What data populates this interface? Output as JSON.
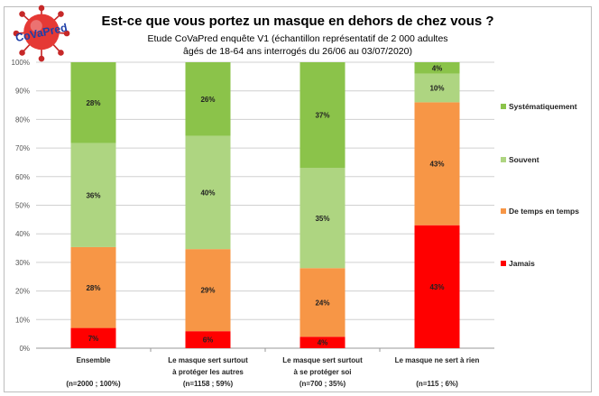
{
  "logo_text": "CoVaPred",
  "chart_data": {
    "type": "bar",
    "stacked": true,
    "title": "Est-ce que vous portez un masque en dehors de chez vous ?",
    "subtitle": [
      "Etude CoVaPred enquête V1 (échantillon représentatif de 2 000 adultes",
      "âgés de 18-64 ans interrogés du 26/06 au 03/07/2020)"
    ],
    "categories": [
      {
        "lines": [
          "Ensemble",
          "",
          "(n=2000 ; 100%)"
        ]
      },
      {
        "lines": [
          "Le masque sert surtout",
          "à protéger les autres",
          "(n=1158 ; 59%)"
        ]
      },
      {
        "lines": [
          "Le masque sert surtout",
          "à se protéger soi",
          "(n=700 ; 35%)"
        ]
      },
      {
        "lines": [
          "Le masque ne sert à rien",
          "",
          "(n=115 ; 6%)"
        ]
      }
    ],
    "series": [
      {
        "name": "Jamais",
        "color": "#ff0000",
        "values": [
          7,
          6,
          4,
          43
        ]
      },
      {
        "name": "De temps en temps",
        "color": "#f79646",
        "values": [
          28,
          29,
          24,
          43
        ]
      },
      {
        "name": "Souvent",
        "color": "#aed581",
        "values": [
          36,
          40,
          35,
          10
        ]
      },
      {
        "name": "Systématiquement",
        "color": "#8bc34a",
        "values": [
          28,
          26,
          37,
          4
        ]
      }
    ],
    "legend_order": [
      "Systématiquement",
      "Souvent",
      "De temps en temps",
      "Jamais"
    ],
    "legend_position": "right",
    "ylim": [
      0,
      100
    ],
    "yticks": [
      "0%",
      "10%",
      "20%",
      "30%",
      "40%",
      "50%",
      "60%",
      "70%",
      "80%",
      "90%",
      "100%"
    ],
    "grid": true
  }
}
